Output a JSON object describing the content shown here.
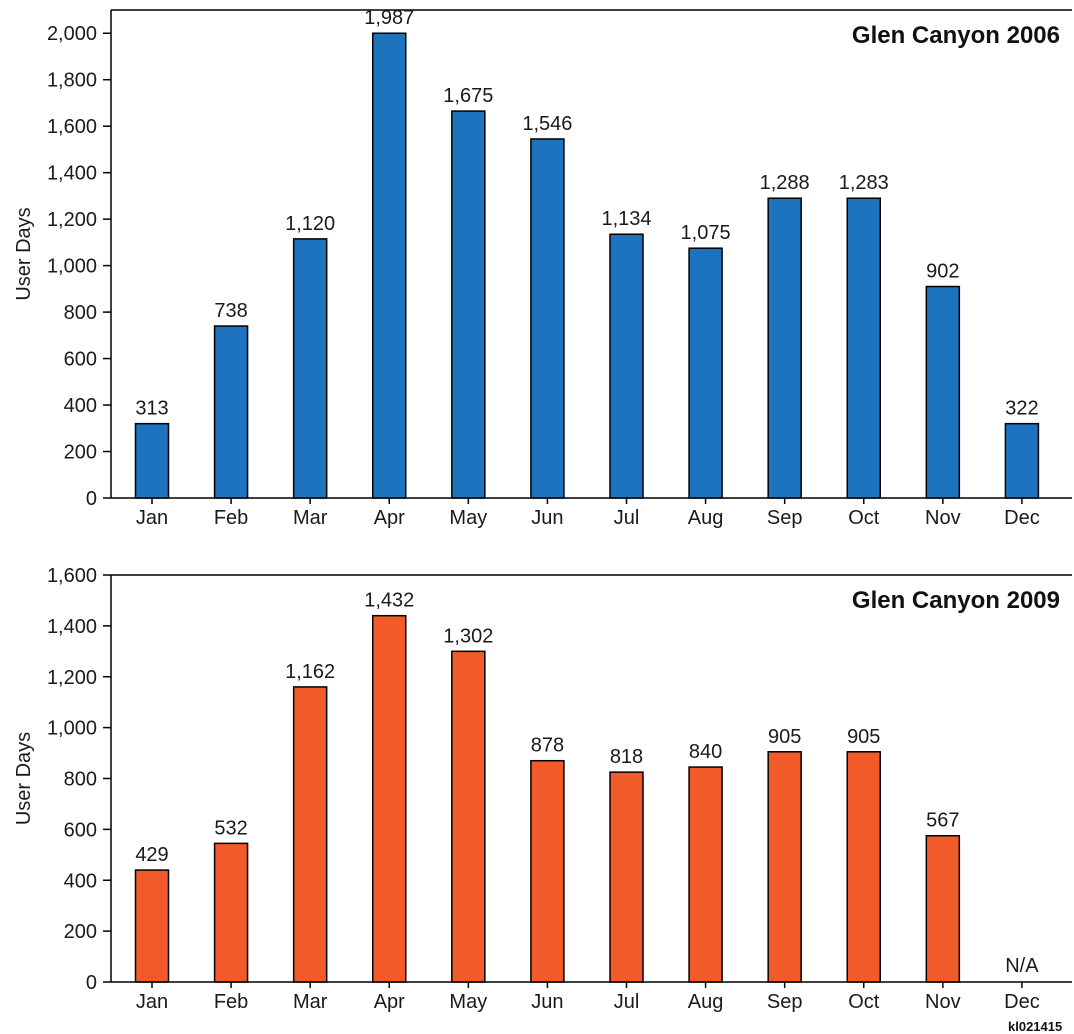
{
  "figure_id": "kl021415",
  "colors": {
    "panel_2006_bar": "#1e73be",
    "panel_2009_bar": "#f15a29",
    "bar_outline": "#000000",
    "axis": "#000000",
    "text": "#1a1a1a"
  },
  "chart_data": [
    {
      "type": "bar",
      "title": "Glen Canyon 2006",
      "title_placement": "top-right",
      "xlabel": "",
      "ylabel": "User Days",
      "ylim": [
        0,
        2100
      ],
      "yticks": [
        0,
        200,
        400,
        600,
        800,
        1000,
        1200,
        1400,
        1600,
        1800,
        2000
      ],
      "ytick_labels": [
        "0",
        "200",
        "400",
        "600",
        "800",
        "1,000",
        "1,200",
        "1,400",
        "1,600",
        "1,800",
        "2,000"
      ],
      "grid": false,
      "categories": [
        "Jan",
        "Feb",
        "Mar",
        "Apr",
        "May",
        "Jun",
        "Jul",
        "Aug",
        "Sep",
        "Oct",
        "Nov",
        "Dec"
      ],
      "values": [
        313,
        738,
        1120,
        1987,
        1675,
        1546,
        1134,
        1075,
        1288,
        1283,
        902,
        322
      ],
      "bar_heights": [
        320,
        740,
        1115,
        2000,
        1665,
        1545,
        1135,
        1075,
        1290,
        1290,
        910,
        320
      ],
      "data_labels": [
        "313",
        "738",
        "1,120",
        "1,987",
        "1,675",
        "1,546",
        "1,134",
        "1,075",
        "1,288",
        "1,283",
        "902",
        "322"
      ]
    },
    {
      "type": "bar",
      "title": "Glen Canyon 2009",
      "title_placement": "top-right",
      "xlabel": "",
      "ylabel": "User Days",
      "ylim": [
        0,
        1600
      ],
      "yticks": [
        0,
        200,
        400,
        600,
        800,
        1000,
        1200,
        1400,
        1600
      ],
      "ytick_labels": [
        "0",
        "200",
        "400",
        "600",
        "800",
        "1,000",
        "1,200",
        "1,400",
        "1,600"
      ],
      "grid": false,
      "categories": [
        "Jan",
        "Feb",
        "Mar",
        "Apr",
        "May",
        "Jun",
        "Jul",
        "Aug",
        "Sep",
        "Oct",
        "Nov",
        "Dec"
      ],
      "values": [
        429,
        532,
        1162,
        1432,
        1302,
        878,
        818,
        840,
        905,
        905,
        567,
        null
      ],
      "bar_heights": [
        440,
        545,
        1160,
        1440,
        1300,
        870,
        825,
        845,
        905,
        905,
        575,
        null
      ],
      "data_labels": [
        "429",
        "532",
        "1,162",
        "1,432",
        "1,302",
        "878",
        "818",
        "840",
        "905",
        "905",
        "567",
        "N/A"
      ]
    }
  ]
}
